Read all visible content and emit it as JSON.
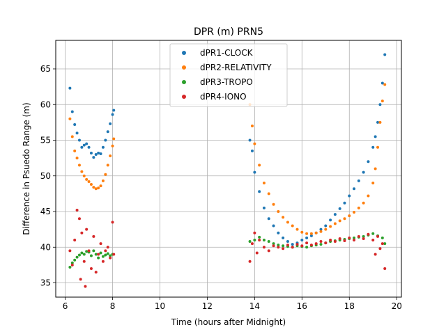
{
  "chart_data": {
    "type": "scatter",
    "title": "DPR (m) PRN5",
    "xlabel": "Time (hours after Midnight)",
    "ylabel": "Difference in Psuedo Range (m)",
    "xlim": [
      5.6,
      20.2
    ],
    "ylim": [
      33,
      69
    ],
    "xticks": [
      6,
      8,
      10,
      12,
      14,
      16,
      18,
      20
    ],
    "yticks": [
      35,
      40,
      45,
      50,
      55,
      60,
      65
    ],
    "grid": true,
    "legend_position": "top-center",
    "series": [
      {
        "name": "dPR1-CLOCK",
        "color": "#1f77b4",
        "x": [
          6.2,
          6.3,
          6.4,
          6.5,
          6.6,
          6.7,
          6.8,
          6.9,
          7.0,
          7.1,
          7.2,
          7.3,
          7.4,
          7.5,
          7.6,
          7.7,
          7.8,
          7.9,
          8.0,
          8.05,
          13.8,
          13.9,
          14.0,
          14.2,
          14.4,
          14.6,
          14.8,
          15.0,
          15.2,
          15.4,
          15.6,
          15.8,
          16.0,
          16.2,
          16.4,
          16.6,
          16.8,
          17.0,
          17.2,
          17.4,
          17.6,
          17.8,
          18.0,
          18.2,
          18.4,
          18.6,
          18.8,
          19.0,
          19.1,
          19.2,
          19.3,
          19.4,
          19.5
        ],
        "y": [
          62.3,
          59.0,
          57.2,
          56.0,
          55.0,
          54.0,
          54.3,
          54.5,
          54.0,
          53.2,
          52.6,
          53.0,
          53.2,
          53.1,
          54.0,
          55.0,
          56.2,
          57.3,
          58.6,
          59.2,
          55.0,
          53.5,
          50.5,
          47.8,
          45.5,
          44.0,
          43.0,
          42.0,
          41.3,
          40.8,
          40.4,
          40.6,
          41.0,
          41.3,
          41.6,
          42.0,
          42.5,
          43.0,
          43.8,
          44.6,
          45.4,
          46.2,
          47.2,
          48.2,
          49.3,
          50.5,
          52.0,
          54.0,
          55.5,
          57.5,
          60.0,
          63.0,
          67.0
        ]
      },
      {
        "name": "dPR2-RELATIVITY",
        "color": "#ff7f0e",
        "x": [
          6.2,
          6.3,
          6.4,
          6.5,
          6.6,
          6.7,
          6.8,
          6.9,
          7.0,
          7.1,
          7.2,
          7.3,
          7.4,
          7.5,
          7.6,
          7.7,
          7.8,
          7.9,
          8.0,
          8.05,
          13.8,
          13.9,
          14.0,
          14.2,
          14.4,
          14.6,
          14.8,
          15.0,
          15.2,
          15.4,
          15.6,
          15.8,
          16.0,
          16.2,
          16.4,
          16.6,
          16.8,
          17.0,
          17.2,
          17.4,
          17.6,
          17.8,
          18.0,
          18.2,
          18.4,
          18.6,
          18.8,
          19.0,
          19.1,
          19.2,
          19.3,
          19.4,
          19.5
        ],
        "y": [
          58.0,
          55.5,
          53.5,
          52.5,
          51.5,
          50.6,
          50.0,
          49.5,
          49.2,
          48.8,
          48.4,
          48.2,
          48.3,
          48.6,
          49.3,
          50.2,
          51.5,
          52.8,
          54.2,
          55.2,
          60.0,
          57.0,
          54.5,
          51.5,
          49.0,
          47.5,
          46.0,
          45.0,
          44.2,
          43.5,
          43.0,
          42.5,
          42.1,
          41.9,
          41.9,
          42.0,
          42.2,
          42.5,
          42.9,
          43.3,
          43.7,
          44.0,
          44.4,
          44.9,
          45.5,
          46.2,
          47.2,
          49.0,
          51.0,
          54.0,
          57.5,
          60.5,
          62.8
        ]
      },
      {
        "name": "dPR3-TROPO",
        "color": "#2ca02c",
        "x": [
          6.2,
          6.3,
          6.4,
          6.5,
          6.6,
          6.7,
          6.8,
          6.9,
          7.0,
          7.1,
          7.2,
          7.3,
          7.4,
          7.5,
          7.6,
          7.7,
          7.8,
          7.9,
          8.0,
          13.8,
          14.0,
          14.2,
          14.4,
          14.6,
          14.8,
          15.0,
          15.2,
          15.4,
          15.6,
          15.8,
          16.0,
          16.2,
          16.4,
          16.6,
          16.8,
          17.0,
          17.2,
          17.4,
          17.6,
          17.8,
          18.0,
          18.2,
          18.4,
          18.6,
          18.8,
          19.0,
          19.2,
          19.4,
          19.5
        ],
        "y": [
          37.2,
          37.8,
          38.2,
          38.6,
          38.9,
          39.2,
          39.0,
          39.4,
          39.3,
          38.8,
          39.5,
          39.0,
          38.5,
          39.2,
          38.7,
          38.9,
          39.1,
          38.8,
          39.0,
          40.8,
          41.0,
          41.4,
          41.0,
          40.8,
          40.5,
          40.3,
          40.2,
          40.1,
          40.0,
          40.2,
          40.1,
          40.0,
          40.2,
          40.3,
          40.4,
          40.6,
          40.8,
          40.9,
          41.0,
          41.1,
          41.2,
          41.3,
          41.4,
          41.5,
          41.7,
          41.9,
          41.6,
          41.3,
          40.5
        ]
      },
      {
        "name": "dPR4-IONO",
        "color": "#d62728",
        "x": [
          6.2,
          6.3,
          6.4,
          6.5,
          6.6,
          6.65,
          6.7,
          6.8,
          6.85,
          6.9,
          7.0,
          7.1,
          7.2,
          7.3,
          7.4,
          7.5,
          7.6,
          7.7,
          7.8,
          7.9,
          8.0,
          8.05,
          13.8,
          13.9,
          14.0,
          14.1,
          14.2,
          14.4,
          14.6,
          14.8,
          15.0,
          15.2,
          15.4,
          15.6,
          15.8,
          16.0,
          16.2,
          16.4,
          16.6,
          16.8,
          17.0,
          17.2,
          17.4,
          17.6,
          17.8,
          18.0,
          18.2,
          18.4,
          18.6,
          18.8,
          19.0,
          19.1,
          19.2,
          19.3,
          19.4,
          19.5
        ],
        "y": [
          39.5,
          37.5,
          41.0,
          45.2,
          44.0,
          35.5,
          42.0,
          38.0,
          34.5,
          42.5,
          39.5,
          37.0,
          41.5,
          36.5,
          39.0,
          40.5,
          38.0,
          39.5,
          40.0,
          38.5,
          43.5,
          39.0,
          38.0,
          40.5,
          42.0,
          39.2,
          41.0,
          40.0,
          39.5,
          40.2,
          40.0,
          39.8,
          40.3,
          40.0,
          40.4,
          40.2,
          40.6,
          40.3,
          40.5,
          40.8,
          40.6,
          41.0,
          40.8,
          41.2,
          40.9,
          41.3,
          41.0,
          41.5,
          41.2,
          41.8,
          41.0,
          39.0,
          41.5,
          39.8,
          40.5,
          37.0
        ]
      }
    ]
  }
}
